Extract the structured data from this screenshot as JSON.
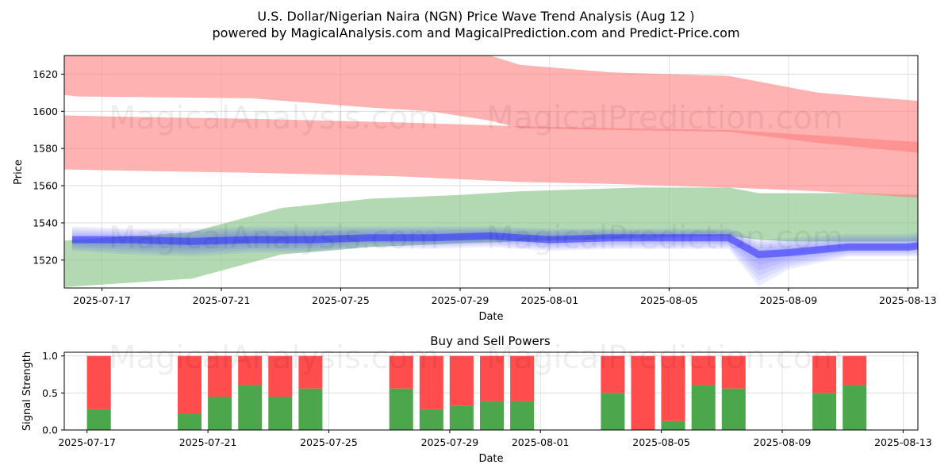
{
  "header": {
    "title_line1": "U.S. Dollar/Nigerian Naira (NGN) Price Wave Trend Analysis (Aug 12 )",
    "title_line2": "powered by MagicalAnalysis.com and MagicalPrediction.com and Predict-Price.com"
  },
  "watermark": {
    "text1": "MagicalAnalysis.com",
    "text2": "MagicalPrediction.com"
  },
  "colors": {
    "red_band": "#ff7f7f",
    "green_band": "#7fbf7f",
    "blue_line": "#3333ff",
    "buy": "#4ca64c",
    "sell": "#ff4c4c",
    "grid": "#d9d9d9"
  },
  "chart_data": [
    {
      "type": "area",
      "title": "",
      "xlabel": "Date",
      "ylabel": "Price",
      "x_start": "2025-07-15",
      "x_end": "2025-08-13",
      "ylim": [
        1505,
        1630
      ],
      "yticks": [
        1520,
        1540,
        1560,
        1580,
        1600,
        1620
      ],
      "xticks": [
        "2025-07-17",
        "2025-07-21",
        "2025-07-25",
        "2025-07-29",
        "2025-08-01",
        "2025-08-05",
        "2025-08-09",
        "2025-08-13"
      ],
      "grid": true,
      "series": [
        {
          "name": "Upper red band",
          "color": "#ff7f7f",
          "days": [
            0,
            1.2,
            7,
            11,
            13,
            15,
            16,
            19,
            23,
            26,
            29.8
          ],
          "lower": [
            1610,
            1608,
            1607,
            1602,
            1600,
            1595,
            1591,
            1590,
            1589,
            1583,
            1577
          ],
          "upper": [
            1630,
            1630,
            1630,
            1630,
            1630,
            1630,
            1625,
            1621,
            1619,
            1610,
            1605
          ]
        },
        {
          "name": "Lower red band",
          "color": "#ff7f7f",
          "days": [
            0,
            0.2,
            3,
            7,
            12,
            16,
            19,
            23,
            26,
            29.8
          ],
          "lower": [
            1570,
            1569,
            1568,
            1567,
            1565,
            1562,
            1561,
            1559,
            1557,
            1553
          ],
          "upper": [
            1599,
            1598,
            1597,
            1596,
            1594,
            1592,
            1591,
            1590,
            1587,
            1583
          ]
        },
        {
          "name": "Green band",
          "color": "#7fbf7f",
          "days": [
            -0.2,
            0.3,
            5,
            8,
            11,
            14,
            16,
            18,
            20,
            23,
            24,
            25,
            27,
            29.8
          ],
          "lower": [
            1527,
            1505,
            1510,
            1523,
            1527,
            1529,
            1530,
            1531,
            1532,
            1533,
            1531,
            1530,
            1530,
            1530
          ],
          "upper": [
            1528,
            1530,
            1535,
            1548,
            1553,
            1555,
            1557,
            1558,
            1559,
            1559,
            1556,
            1556,
            1556,
            1555
          ]
        },
        {
          "name": "Blue forecast center",
          "color": "#3333ff",
          "days": [
            1,
            3,
            5,
            7,
            9,
            11,
            13,
            15,
            17,
            19,
            21,
            23,
            24,
            25,
            27,
            29,
            30
          ],
          "values": [
            1531,
            1531,
            1530,
            1531,
            1531,
            1532,
            1532,
            1533,
            1531,
            1532,
            1532,
            1532,
            1523,
            1524,
            1527,
            1527,
            1529
          ],
          "spread_low": [
            1525,
            1523,
            1522,
            1524,
            1524,
            1527,
            1526,
            1527,
            1525,
            1526,
            1526,
            1526,
            1506,
            1515,
            1522,
            1522,
            1522
          ],
          "spread_high": [
            1538,
            1537,
            1537,
            1538,
            1538,
            1538,
            1538,
            1538,
            1537,
            1537,
            1537,
            1537,
            1531,
            1532,
            1534,
            1534,
            1537
          ]
        }
      ]
    },
    {
      "type": "bar",
      "title": "Buy and Sell Powers",
      "xlabel": "Date",
      "ylabel": "Signal Strength",
      "ylim": [
        0,
        1.05
      ],
      "yticks": [
        0.0,
        0.5,
        1.0
      ],
      "xticks": [
        "2025-07-17",
        "2025-07-21",
        "2025-07-25",
        "2025-07-29",
        "2025-08-01",
        "2025-08-05",
        "2025-08-09",
        "2025-08-13"
      ],
      "grid": true,
      "categories": [
        "2025-07-17",
        "2025-07-20",
        "2025-07-21",
        "2025-07-22",
        "2025-07-23",
        "2025-07-24",
        "2025-07-27",
        "2025-07-28",
        "2025-07-29",
        "2025-07-30",
        "2025-07-31",
        "2025-08-03",
        "2025-08-04",
        "2025-08-05",
        "2025-08-06",
        "2025-08-07",
        "2025-08-10",
        "2025-08-11"
      ],
      "series": [
        {
          "name": "Buy",
          "color": "#4ca64c",
          "values": [
            0.28,
            0.22,
            0.45,
            0.61,
            0.45,
            0.56,
            0.56,
            0.28,
            0.33,
            0.39,
            0.39,
            0.5,
            0.0,
            0.12,
            0.61,
            0.56,
            0.5,
            0.61
          ]
        },
        {
          "name": "Sell",
          "color": "#ff4c4c",
          "values": [
            0.72,
            0.78,
            0.55,
            0.39,
            0.55,
            0.44,
            0.44,
            0.72,
            0.67,
            0.61,
            0.61,
            0.5,
            1.0,
            0.88,
            0.39,
            0.44,
            0.5,
            0.39
          ]
        }
      ]
    }
  ]
}
